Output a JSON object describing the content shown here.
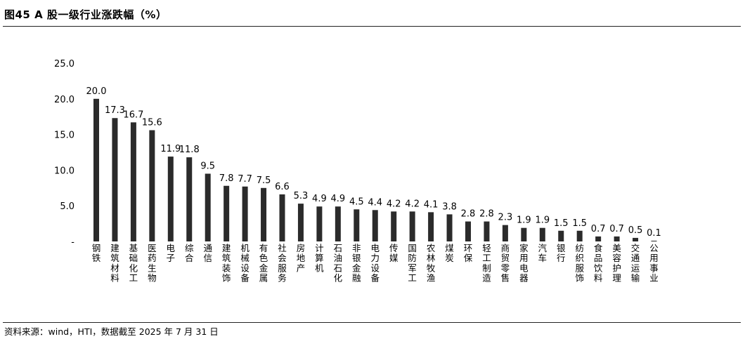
{
  "header": {
    "title": "图45 A 股一级行业涨跌幅（%）"
  },
  "footer": {
    "source": "资料来源：wind，HTI，数据截至 2025 年 7 月 31 日"
  },
  "chart_data": {
    "type": "bar",
    "title": "",
    "xlabel": "",
    "ylabel": "",
    "ylim": [
      0,
      25
    ],
    "yticks": [
      "-",
      "5.0",
      "10.0",
      "15.0",
      "20.0",
      "25.0"
    ],
    "grid": false,
    "legend": "none",
    "bar_color": "#2b2b2b",
    "categories": [
      "钢铁",
      "建筑材料",
      "基础化工",
      "医药生物",
      "电子",
      "综合",
      "通信",
      "建筑装饰",
      "机械设备",
      "有色金属",
      "社会服务",
      "房地产",
      "计算机",
      "石油石化",
      "非银金融",
      "电力设备",
      "传媒",
      "国防军工",
      "农林牧渔",
      "煤炭",
      "环保",
      "轻工制造",
      "商贸零售",
      "家用电器",
      "汽车",
      "银行",
      "纺织服饰",
      "食品饮料",
      "美容护理",
      "交通运输",
      "公用事业"
    ],
    "values": [
      20.0,
      17.3,
      16.7,
      15.6,
      11.9,
      11.8,
      9.5,
      7.8,
      7.7,
      7.5,
      6.6,
      5.3,
      4.9,
      4.9,
      4.5,
      4.4,
      4.2,
      4.2,
      4.1,
      3.8,
      2.8,
      2.8,
      2.3,
      1.9,
      1.9,
      1.5,
      1.5,
      0.7,
      0.7,
      0.5,
      0.1
    ],
    "data_labels": [
      "20.0",
      "17.3",
      "16.7",
      "15.6",
      "11.9",
      "11.8",
      "9.5",
      "7.8",
      "7.7",
      "7.5",
      "6.6",
      "5.3",
      "4.9",
      "4.9",
      "4.5",
      "4.4",
      "4.2",
      "4.2",
      "4.1",
      "3.8",
      "2.8",
      "2.8",
      "2.3",
      "1.9",
      "1.9",
      "1.5",
      "1.5",
      "0.7",
      "0.7",
      "0.5",
      "0.1"
    ]
  }
}
